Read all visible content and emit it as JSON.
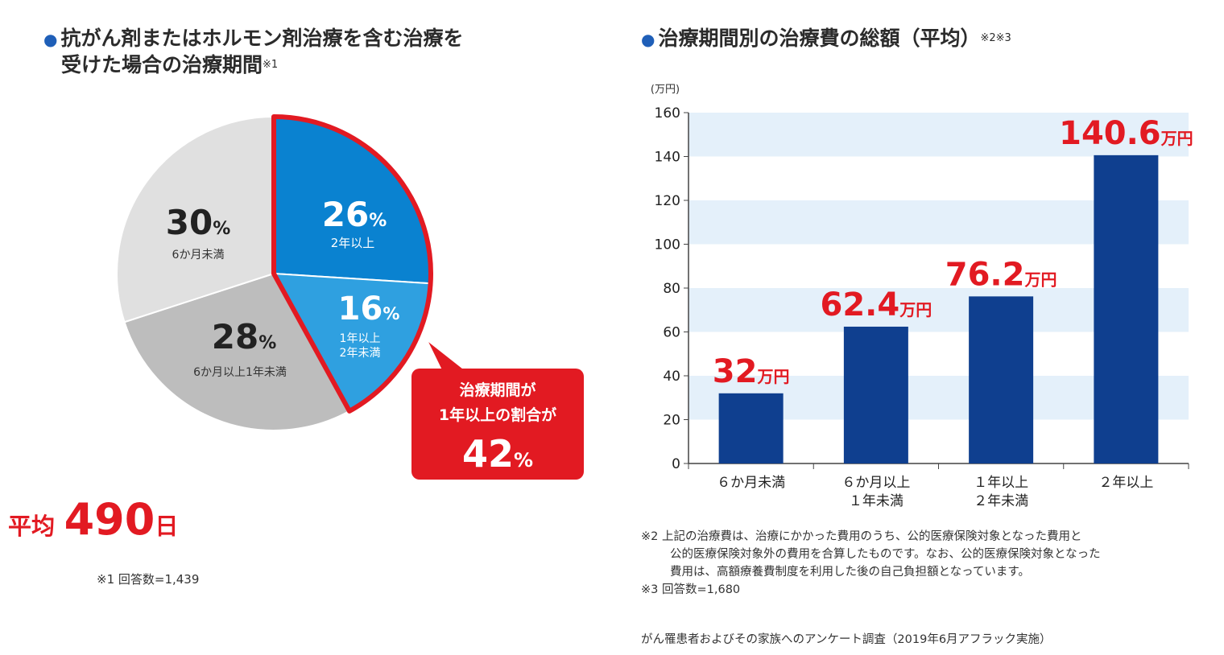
{
  "left_heading": {
    "line1": "抗がん剤またはホルモン剤治療を含む治療を",
    "line2": "受けた場合の治療期間",
    "footmark": "※1"
  },
  "right_heading": {
    "text": "治療期間別の治療費の総額（平均）",
    "footmark": "※2※3"
  },
  "average": {
    "label": "平均",
    "value": "490",
    "unit": "日"
  },
  "left_note": "※1 回答数=1,439",
  "callout": {
    "line1": "治療期間が",
    "line2": "1年以上の割合が",
    "value": "42",
    "unit": "%"
  },
  "notes": {
    "n2_line1": "※2 上記の治療費は、治療にかかった費用のうち、公的医療保険対象となった費用と",
    "n2_line2": "公的医療保険対象外の費用を合算したものです。なお、公的医療保険対象となった",
    "n2_line3": "費用は、高額療養費制度を利用した後の自己負担額となっています。",
    "n3": "※3 回答数=1,680",
    "source": "がん罹患者およびその家族へのアンケート調査（2019年6月アフラック実施）"
  },
  "colors": {
    "accent_red": "#e21a22",
    "bar_navy": "#0f3f8f",
    "pie_dark_blue": "#0a82d0",
    "pie_light_blue": "#2fa0e0",
    "pie_light_gray": "#e0e0e0",
    "pie_mid_gray": "#bdbdbd",
    "band_blue": "#e4f0fa"
  },
  "chart_data": [
    {
      "type": "pie",
      "title": "抗がん剤またはホルモン剤治療を含む治療を受けた場合の治療期間",
      "slices": [
        {
          "label": "2年以上",
          "value": 26,
          "display": "26",
          "unit": "%"
        },
        {
          "label_line1": "1年以上",
          "label_line2": "2年未満",
          "value": 16,
          "display": "16",
          "unit": "%"
        },
        {
          "label": "6か月以上1年未満",
          "value": 28,
          "display": "28",
          "unit": "%"
        },
        {
          "label": "6か月未満",
          "value": 30,
          "display": "30",
          "unit": "%"
        }
      ],
      "highlighted": "1年以上（26% + 16% = 42%）"
    },
    {
      "type": "bar",
      "title": "治療期間別の治療費の総額（平均）",
      "ylabel": "(万円)",
      "ylim": [
        0,
        160
      ],
      "yticks": [
        0,
        20,
        40,
        60,
        80,
        100,
        120,
        140,
        160
      ],
      "categories": [
        {
          "line1": "６か月未満",
          "line2": ""
        },
        {
          "line1": "６か月以上",
          "line2": "１年未満"
        },
        {
          "line1": "１年以上",
          "line2": "２年未満"
        },
        {
          "line1": "２年以上",
          "line2": ""
        }
      ],
      "values": [
        32,
        62.4,
        76.2,
        140.6
      ],
      "value_labels": [
        "32",
        "62.4",
        "76.2",
        "140.6"
      ],
      "value_unit": "万円"
    }
  ]
}
